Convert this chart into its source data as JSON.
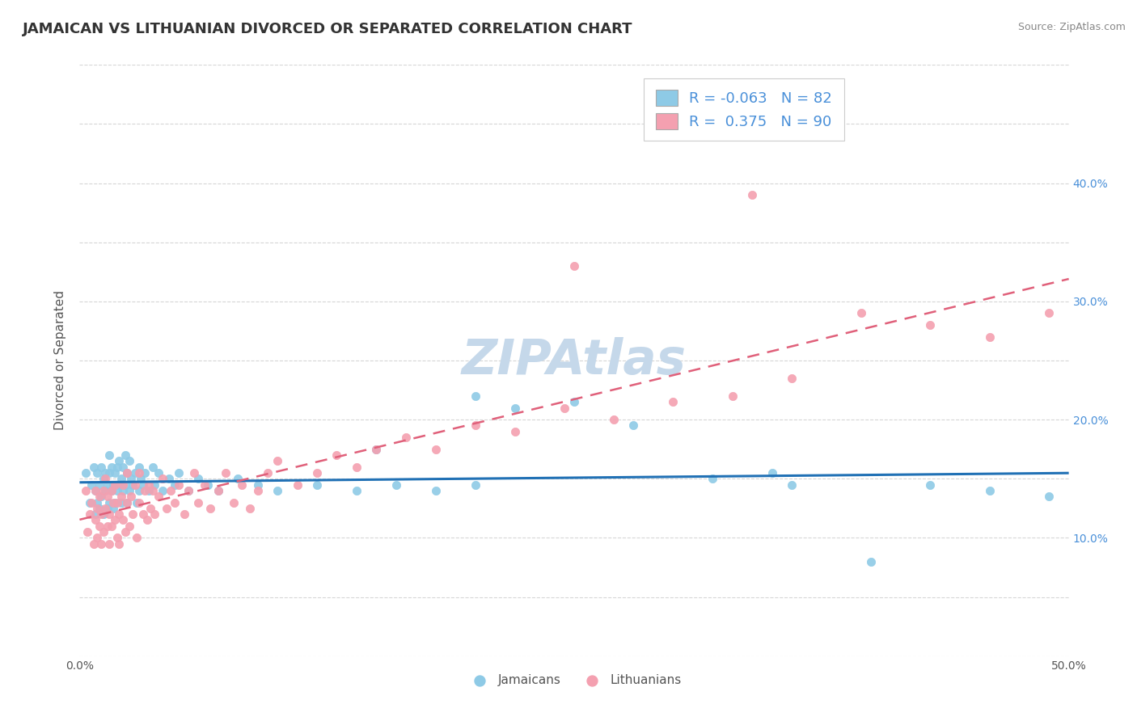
{
  "title": "JAMAICAN VS LITHUANIAN DIVORCED OR SEPARATED CORRELATION CHART",
  "source": "Source: ZipAtlas.com",
  "xlabel_label": "Jamaicans",
  "ylabel_label": "Lithuanians",
  "ylabel": "Divorced or Separated",
  "xlim": [
    0.0,
    0.5
  ],
  "ylim": [
    0.0,
    0.5
  ],
  "xticks": [
    0.0,
    0.05,
    0.1,
    0.15,
    0.2,
    0.25,
    0.3,
    0.35,
    0.4,
    0.45,
    0.5
  ],
  "yticks": [
    0.0,
    0.05,
    0.1,
    0.15,
    0.2,
    0.25,
    0.3,
    0.35,
    0.4,
    0.45,
    0.5
  ],
  "jamaican_color": "#8ecae6",
  "lithuanian_color": "#f4a0b0",
  "jamaican_line_color": "#2171b5",
  "lithuanian_line_color": "#e0607a",
  "watermark_color": "#c5d8ea",
  "background_color": "#ffffff",
  "grid_color": "#cccccc",
  "title_fontsize": 13,
  "axis_fontsize": 11,
  "tick_fontsize": 10,
  "jamaican_scatter_x": [
    0.003,
    0.005,
    0.006,
    0.007,
    0.008,
    0.008,
    0.009,
    0.009,
    0.01,
    0.01,
    0.011,
    0.011,
    0.012,
    0.012,
    0.013,
    0.013,
    0.014,
    0.014,
    0.015,
    0.015,
    0.015,
    0.016,
    0.016,
    0.017,
    0.017,
    0.018,
    0.018,
    0.019,
    0.019,
    0.02,
    0.02,
    0.021,
    0.021,
    0.022,
    0.022,
    0.023,
    0.023,
    0.024,
    0.024,
    0.025,
    0.025,
    0.026,
    0.027,
    0.028,
    0.029,
    0.03,
    0.03,
    0.031,
    0.032,
    0.033,
    0.035,
    0.037,
    0.038,
    0.04,
    0.042,
    0.045,
    0.048,
    0.05,
    0.055,
    0.06,
    0.065,
    0.07,
    0.08,
    0.09,
    0.1,
    0.12,
    0.14,
    0.16,
    0.18,
    0.2,
    0.22,
    0.25,
    0.28,
    0.32,
    0.36,
    0.4,
    0.43,
    0.46,
    0.49,
    0.2,
    0.15,
    0.35
  ],
  "jamaican_scatter_y": [
    0.155,
    0.13,
    0.145,
    0.16,
    0.12,
    0.14,
    0.13,
    0.155,
    0.145,
    0.125,
    0.135,
    0.16,
    0.12,
    0.15,
    0.14,
    0.155,
    0.125,
    0.145,
    0.13,
    0.155,
    0.17,
    0.14,
    0.16,
    0.125,
    0.145,
    0.13,
    0.155,
    0.14,
    0.16,
    0.145,
    0.165,
    0.13,
    0.15,
    0.14,
    0.16,
    0.145,
    0.17,
    0.13,
    0.155,
    0.14,
    0.165,
    0.15,
    0.145,
    0.155,
    0.13,
    0.16,
    0.14,
    0.15,
    0.145,
    0.155,
    0.14,
    0.16,
    0.145,
    0.155,
    0.14,
    0.15,
    0.145,
    0.155,
    0.14,
    0.15,
    0.145,
    0.14,
    0.15,
    0.145,
    0.14,
    0.145,
    0.14,
    0.145,
    0.14,
    0.145,
    0.21,
    0.215,
    0.195,
    0.15,
    0.145,
    0.08,
    0.145,
    0.14,
    0.135,
    0.22,
    0.175,
    0.155
  ],
  "lithuanian_scatter_x": [
    0.003,
    0.004,
    0.005,
    0.006,
    0.007,
    0.008,
    0.008,
    0.009,
    0.009,
    0.01,
    0.01,
    0.011,
    0.011,
    0.012,
    0.012,
    0.013,
    0.013,
    0.014,
    0.014,
    0.015,
    0.015,
    0.016,
    0.016,
    0.017,
    0.018,
    0.018,
    0.019,
    0.019,
    0.02,
    0.02,
    0.021,
    0.022,
    0.022,
    0.023,
    0.024,
    0.024,
    0.025,
    0.026,
    0.027,
    0.028,
    0.029,
    0.03,
    0.03,
    0.032,
    0.033,
    0.034,
    0.035,
    0.036,
    0.037,
    0.038,
    0.04,
    0.042,
    0.044,
    0.046,
    0.048,
    0.05,
    0.053,
    0.055,
    0.058,
    0.06,
    0.063,
    0.066,
    0.07,
    0.074,
    0.078,
    0.082,
    0.086,
    0.09,
    0.095,
    0.1,
    0.11,
    0.12,
    0.13,
    0.14,
    0.15,
    0.165,
    0.18,
    0.2,
    0.22,
    0.245,
    0.27,
    0.3,
    0.33,
    0.36,
    0.395,
    0.43,
    0.46,
    0.49,
    0.34,
    0.25
  ],
  "lithuanian_scatter_y": [
    0.14,
    0.105,
    0.12,
    0.13,
    0.095,
    0.115,
    0.14,
    0.1,
    0.125,
    0.11,
    0.135,
    0.095,
    0.12,
    0.14,
    0.105,
    0.125,
    0.15,
    0.11,
    0.135,
    0.12,
    0.095,
    0.14,
    0.11,
    0.13,
    0.115,
    0.145,
    0.1,
    0.13,
    0.12,
    0.095,
    0.135,
    0.115,
    0.145,
    0.105,
    0.13,
    0.155,
    0.11,
    0.135,
    0.12,
    0.145,
    0.1,
    0.13,
    0.155,
    0.12,
    0.14,
    0.115,
    0.145,
    0.125,
    0.14,
    0.12,
    0.135,
    0.15,
    0.125,
    0.14,
    0.13,
    0.145,
    0.12,
    0.14,
    0.155,
    0.13,
    0.145,
    0.125,
    0.14,
    0.155,
    0.13,
    0.145,
    0.125,
    0.14,
    0.155,
    0.165,
    0.145,
    0.155,
    0.17,
    0.16,
    0.175,
    0.185,
    0.175,
    0.195,
    0.19,
    0.21,
    0.2,
    0.215,
    0.22,
    0.235,
    0.29,
    0.28,
    0.27,
    0.29,
    0.39,
    0.33
  ]
}
